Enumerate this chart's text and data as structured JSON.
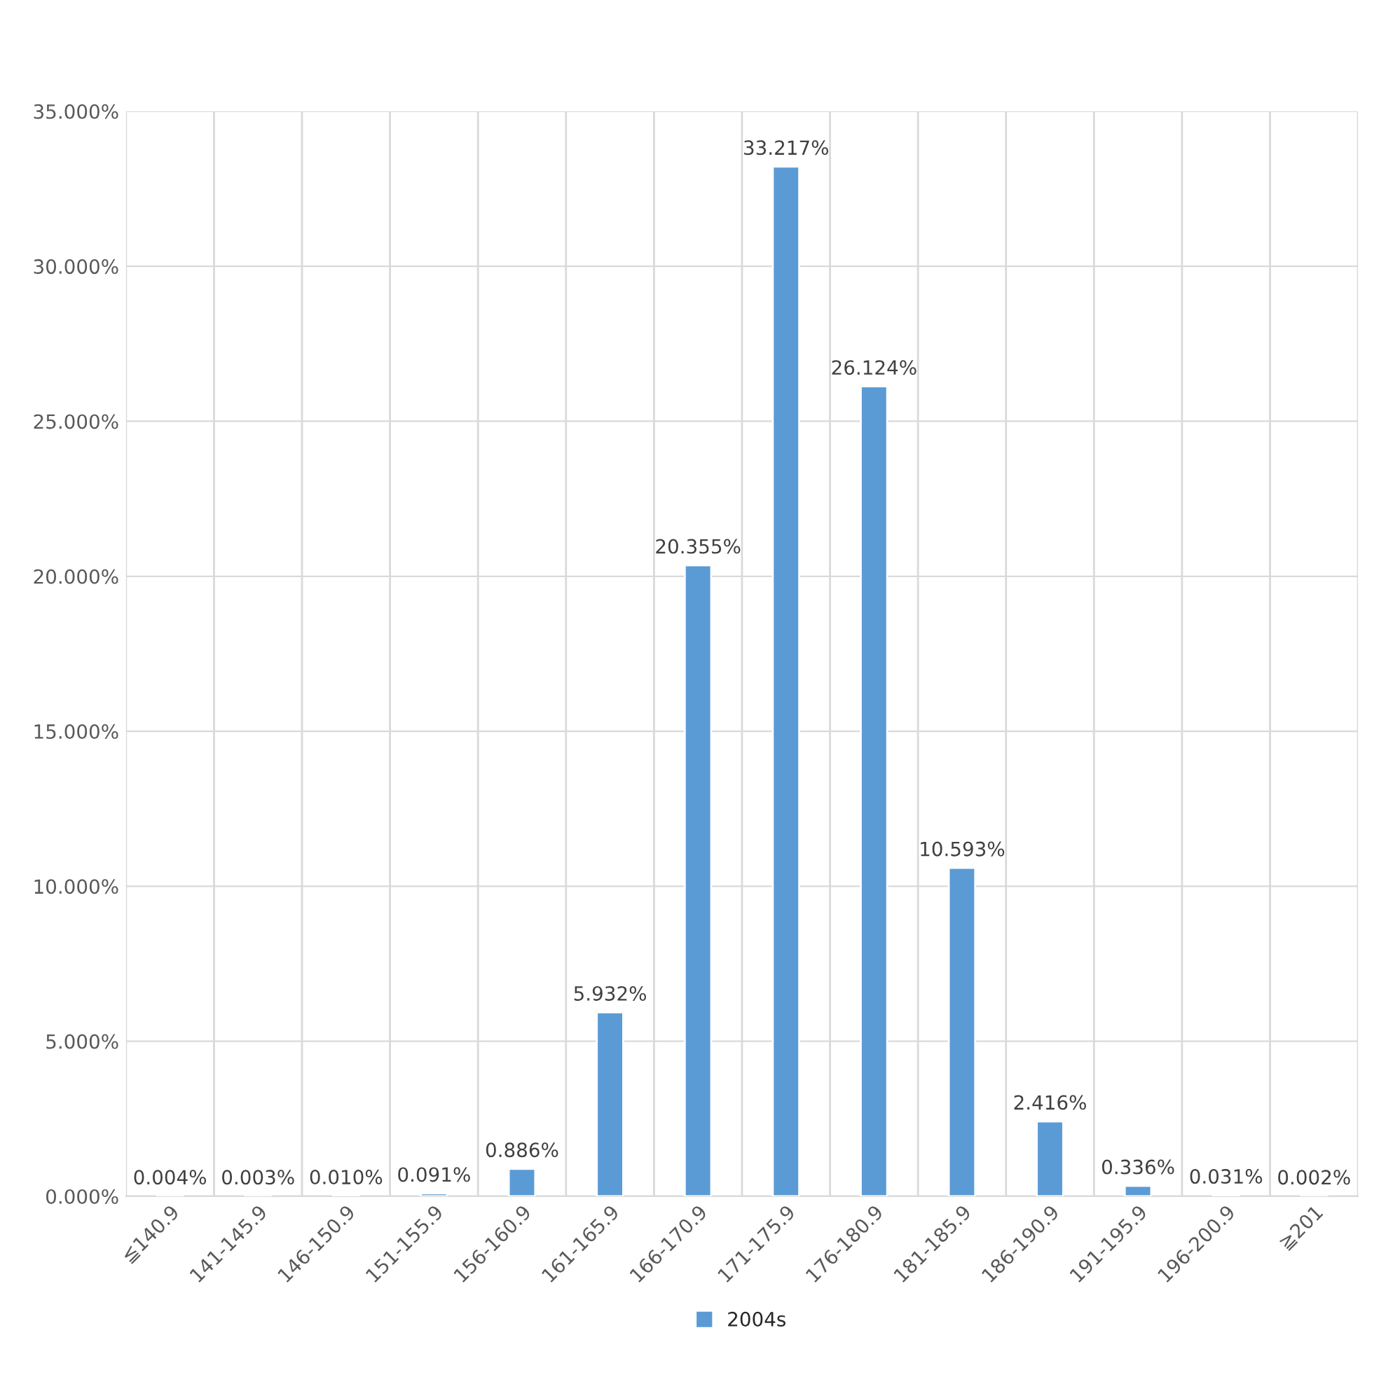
{
  "chart_data": {
    "type": "bar",
    "categories": [
      "≦140.9",
      "141-145.9",
      "146-150.9",
      "151-155.9",
      "156-160.9",
      "161-165.9",
      "166-170.9",
      "171-175.9",
      "176-180.9",
      "181-185.9",
      "186-190.9",
      "191-195.9",
      "196-200.9",
      "≧201"
    ],
    "series": [
      {
        "name": "2004s",
        "color": "#5b9bd5",
        "values": [
          0.004,
          0.003,
          0.01,
          0.091,
          0.886,
          5.932,
          20.355,
          33.217,
          26.124,
          10.593,
          2.416,
          0.336,
          0.031,
          0.002
        ],
        "value_labels": [
          "0.004%",
          "0.003%",
          "0.010%",
          "0.091%",
          "0.886%",
          "5.932%",
          "20.355%",
          "33.217%",
          "26.124%",
          "10.593%",
          "2.416%",
          "0.336%",
          "0.031%",
          "0.002%"
        ]
      }
    ],
    "ylim": [
      0,
      35
    ],
    "yticks": [
      {
        "value": 0,
        "label": "0.000%"
      },
      {
        "value": 5,
        "label": "5.000%"
      },
      {
        "value": 10,
        "label": "10.000%"
      },
      {
        "value": 15,
        "label": "15.000%"
      },
      {
        "value": 20,
        "label": "20.000%"
      },
      {
        "value": 25,
        "label": "25.000%"
      },
      {
        "value": 30,
        "label": "30.000%"
      },
      {
        "value": 35,
        "label": "35.000%"
      }
    ],
    "grid": true,
    "legend": "bottom"
  }
}
